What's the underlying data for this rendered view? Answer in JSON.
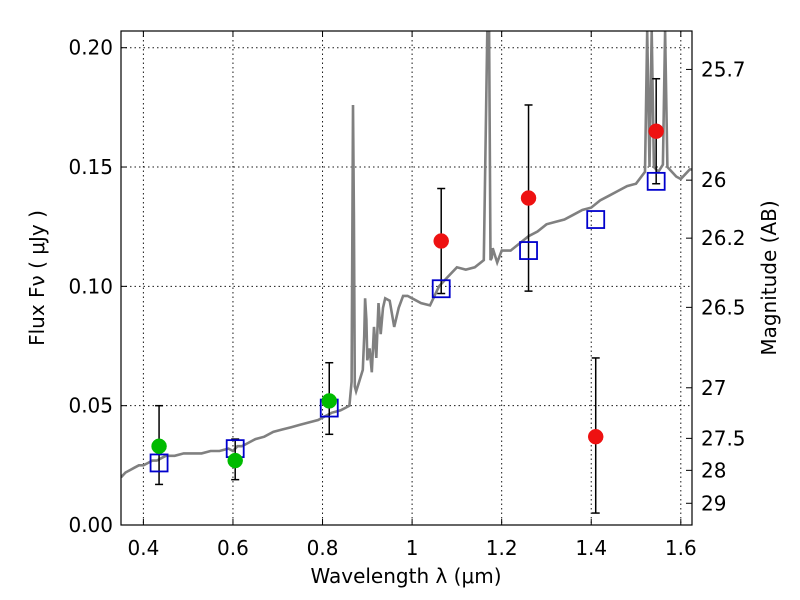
{
  "chart_data": {
    "type": "scatter",
    "xlabel": "Wavelength  λ (μm)",
    "ylabel": "Flux  Fν  ( μJy )",
    "ylabel_right": "Magnitude (AB)",
    "xlim": [
      0.35,
      1.625
    ],
    "ylim": [
      0.0,
      0.207
    ],
    "x_ticks": [
      0.4,
      0.6,
      0.8,
      1.0,
      1.2,
      1.4,
      1.6
    ],
    "x_tick_labels": [
      "0.4",
      "0.6",
      "0.8",
      "1",
      "1.2",
      "1.4",
      "1.6"
    ],
    "y_ticks": [
      0.0,
      0.05,
      0.1,
      0.15,
      0.2
    ],
    "y_tick_labels": [
      "0.00",
      "0.05",
      "0.10",
      "0.15",
      "0.20"
    ],
    "right_ticks": [
      {
        "label": "25.7",
        "flux": 0.1909
      },
      {
        "label": "26",
        "flux": 0.1445
      },
      {
        "label": "26.2",
        "flux": 0.1202
      },
      {
        "label": "26.5",
        "flux": 0.0912
      },
      {
        "label": "27",
        "flux": 0.0575
      },
      {
        "label": "27.5",
        "flux": 0.0363
      },
      {
        "label": "28",
        "flux": 0.0229
      },
      {
        "label": "29",
        "flux": 0.0091
      }
    ],
    "grid": true,
    "series": [
      {
        "style": "model-spectrum",
        "color": "#808080",
        "x": [
          0.35,
          0.36,
          0.37,
          0.38,
          0.39,
          0.4,
          0.41,
          0.42,
          0.43,
          0.44,
          0.45,
          0.47,
          0.49,
          0.51,
          0.53,
          0.55,
          0.57,
          0.59,
          0.6,
          0.61,
          0.62,
          0.63,
          0.65,
          0.67,
          0.69,
          0.71,
          0.73,
          0.75,
          0.77,
          0.79,
          0.8,
          0.82,
          0.84,
          0.85,
          0.86,
          0.865,
          0.868,
          0.87,
          0.872,
          0.875,
          0.88,
          0.885,
          0.89,
          0.893,
          0.895,
          0.898,
          0.9,
          0.905,
          0.91,
          0.915,
          0.92,
          0.925,
          0.93,
          0.935,
          0.94,
          0.95,
          0.96,
          0.97,
          0.98,
          0.99,
          1.0,
          1.02,
          1.04,
          1.06,
          1.08,
          1.1,
          1.12,
          1.14,
          1.16,
          1.168,
          1.172,
          1.175,
          1.178,
          1.18,
          1.19,
          1.2,
          1.22,
          1.24,
          1.26,
          1.28,
          1.3,
          1.32,
          1.34,
          1.36,
          1.38,
          1.4,
          1.42,
          1.44,
          1.46,
          1.48,
          1.5,
          1.52,
          1.525,
          1.53,
          1.535,
          1.54,
          1.55,
          1.56,
          1.565,
          1.57,
          1.58,
          1.59,
          1.6,
          1.61,
          1.62,
          1.625
        ],
        "y": [
          0.02,
          0.022,
          0.023,
          0.024,
          0.025,
          0.025,
          0.026,
          0.027,
          0.027,
          0.028,
          0.029,
          0.029,
          0.03,
          0.03,
          0.03,
          0.031,
          0.031,
          0.032,
          0.031,
          0.033,
          0.033,
          0.034,
          0.036,
          0.037,
          0.039,
          0.04,
          0.041,
          0.042,
          0.043,
          0.044,
          0.045,
          0.047,
          0.048,
          0.049,
          0.05,
          0.06,
          0.176,
          0.13,
          0.058,
          0.056,
          0.059,
          0.062,
          0.065,
          0.079,
          0.095,
          0.086,
          0.069,
          0.074,
          0.064,
          0.083,
          0.07,
          0.093,
          0.08,
          0.091,
          0.095,
          0.094,
          0.083,
          0.091,
          0.096,
          0.096,
          0.095,
          0.093,
          0.092,
          0.1,
          0.104,
          0.108,
          0.107,
          0.108,
          0.111,
          0.207,
          0.207,
          0.111,
          0.112,
          0.116,
          0.11,
          0.115,
          0.115,
          0.118,
          0.121,
          0.123,
          0.126,
          0.127,
          0.128,
          0.13,
          0.132,
          0.133,
          0.136,
          0.138,
          0.14,
          0.142,
          0.143,
          0.148,
          0.207,
          0.15,
          0.207,
          0.15,
          0.148,
          0.151,
          0.207,
          0.15,
          0.148,
          0.146,
          0.145,
          0.147,
          0.149,
          0.149
        ]
      },
      {
        "style": "blue-open-square",
        "color": "#0000cc",
        "x": [
          0.435,
          0.605,
          0.815,
          1.065,
          1.26,
          1.41,
          1.545
        ],
        "y": [
          0.026,
          0.032,
          0.049,
          0.099,
          0.115,
          0.128,
          0.144
        ]
      },
      {
        "style": "green-filled-circle",
        "color": "#00bb00",
        "x": [
          0.435,
          0.605,
          0.815
        ],
        "y": [
          0.033,
          0.027,
          0.052
        ],
        "yerr_low": [
          0.017,
          0.019,
          0.038
        ],
        "yerr_high": [
          0.05,
          0.036,
          0.068
        ]
      },
      {
        "style": "red-filled-circle",
        "color": "#ee1111",
        "x": [
          1.065,
          1.26,
          1.41,
          1.545
        ],
        "y": [
          0.119,
          0.137,
          0.037,
          0.165
        ],
        "yerr_low": [
          0.097,
          0.098,
          0.005,
          0.143
        ],
        "yerr_high": [
          0.141,
          0.176,
          0.07,
          0.187
        ]
      }
    ]
  }
}
